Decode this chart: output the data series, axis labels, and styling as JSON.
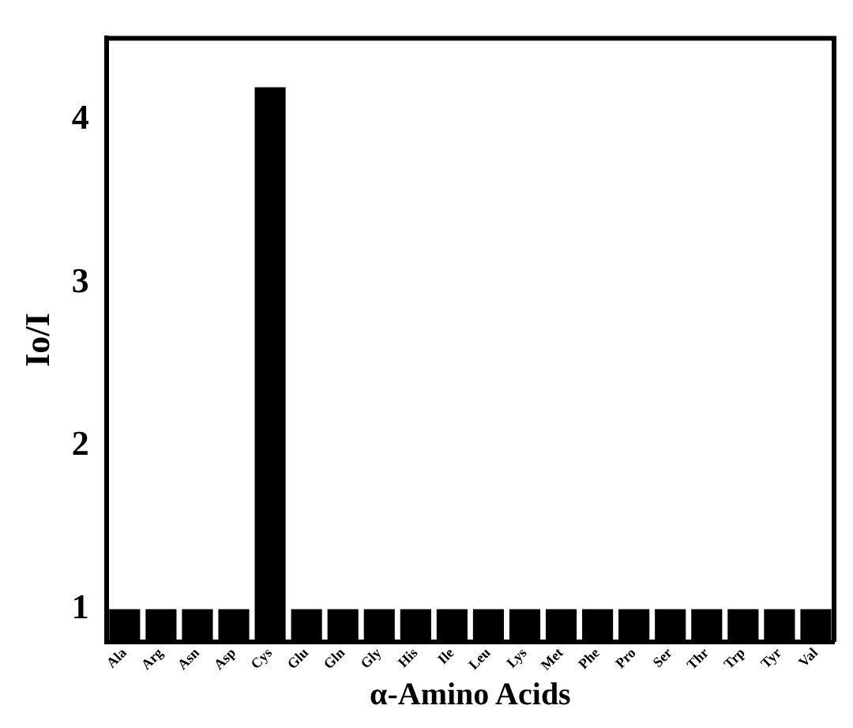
{
  "chart_data": {
    "type": "bar",
    "xlabel": "α-Amino Acids",
    "ylabel": "Io/I",
    "categories": [
      "Ala",
      "Arg",
      "Asn",
      "Asp",
      "Cys",
      "Glu",
      "Gln",
      "Gly",
      "His",
      "Ile",
      "Leu",
      "Lys",
      "Met",
      "Phe",
      "Pro",
      "Ser",
      "Thr",
      "Trp",
      "Tyr",
      "Val"
    ],
    "values": [
      1.0,
      1.0,
      1.0,
      1.0,
      4.2,
      1.0,
      1.0,
      1.0,
      1.0,
      1.0,
      1.0,
      1.0,
      1.0,
      1.0,
      1.0,
      1.0,
      1.0,
      1.0,
      1.0,
      1.0
    ],
    "color": "#000000",
    "ylim": [
      0.8,
      4.5
    ],
    "yticks": [
      1,
      2,
      3,
      4
    ],
    "grid": false,
    "legend": false
  }
}
